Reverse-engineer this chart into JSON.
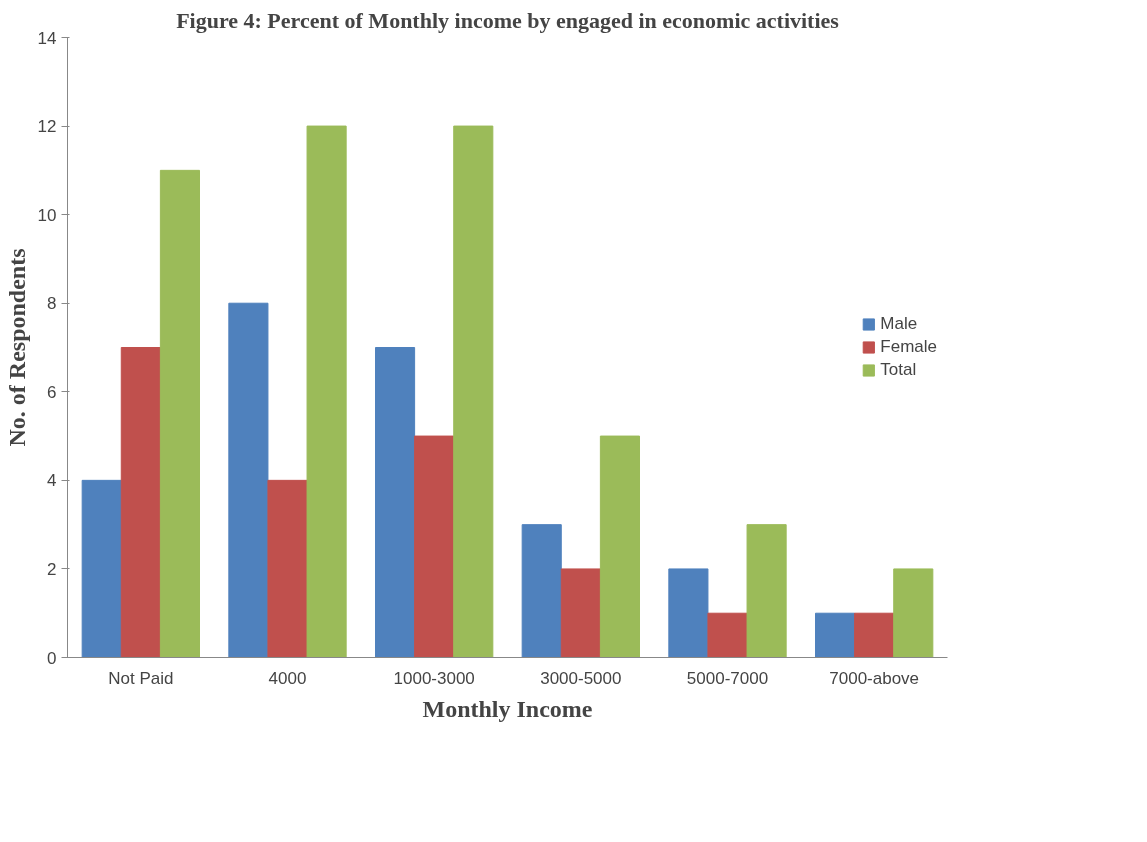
{
  "chart_data": {
    "type": "bar",
    "title": "Figure 4: Percent of Monthly income by engaged in economic activities",
    "xlabel": "Monthly Income",
    "ylabel": "No. of Respondents",
    "categories": [
      "Not Paid",
      "4000",
      "1000-3000",
      "3000-5000",
      "5000-7000",
      "7000-above"
    ],
    "series": [
      {
        "name": "Male",
        "color": "#4f81bd",
        "values": [
          4,
          8,
          7,
          3,
          2,
          1
        ]
      },
      {
        "name": "Female",
        "color": "#c0504d",
        "values": [
          7,
          4,
          5,
          2,
          1,
          1
        ]
      },
      {
        "name": "Total",
        "color": "#9bbb59",
        "values": [
          11,
          12,
          12,
          5,
          3,
          2
        ]
      }
    ],
    "ylim": [
      0,
      14
    ],
    "yticks": [
      0,
      2,
      4,
      6,
      8,
      10,
      12,
      14
    ],
    "grid": false,
    "legend": "right"
  }
}
